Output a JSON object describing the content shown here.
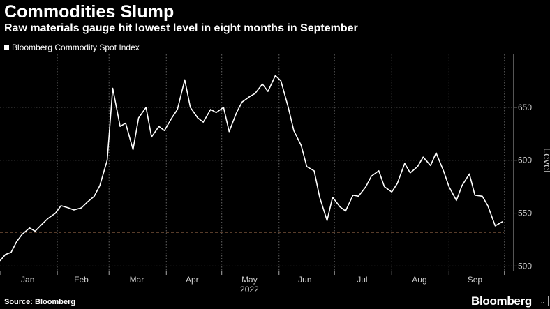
{
  "header": {
    "title": "Commodities Slump",
    "subtitle": "Raw materials gauge hit lowest level in eight months in September"
  },
  "legend": {
    "label": "Bloomberg Commodity Spot Index"
  },
  "footer": {
    "source": "Source: Bloomberg",
    "brand": "Bloomberg",
    "badge": "…"
  },
  "colors": {
    "background": "#000000",
    "line": "#ffffff",
    "reference_line": "#e8a070",
    "grid": "#666666"
  },
  "chart_data": {
    "type": "line",
    "title": "Commodities Slump",
    "subtitle": "Raw materials gauge hit lowest level in eight months in September",
    "xlabel": "",
    "ylabel": "Level",
    "year_label": "2022",
    "month_labels": [
      "Jan",
      "Feb",
      "Mar",
      "Apr",
      "May",
      "Jun",
      "Jul",
      "Aug",
      "Sep"
    ],
    "y_ticks": [
      "500",
      "550",
      "600",
      "650"
    ],
    "ylim": [
      495,
      700
    ],
    "grid": true,
    "legend_position": "top-left",
    "reference_line": {
      "y": 532,
      "style": "dashed"
    },
    "series": [
      {
        "name": "Bloomberg Commodity Spot Index",
        "x": [
          "2022-01-01",
          "2022-01-04",
          "2022-01-07",
          "2022-01-10",
          "2022-01-13",
          "2022-01-17",
          "2022-01-20",
          "2022-01-24",
          "2022-01-27",
          "2022-01-31",
          "2022-02-03",
          "2022-02-07",
          "2022-02-10",
          "2022-02-14",
          "2022-02-17",
          "2022-02-21",
          "2022-02-24",
          "2022-02-28",
          "2022-03-03",
          "2022-03-07",
          "2022-03-10",
          "2022-03-14",
          "2022-03-17",
          "2022-03-21",
          "2022-03-24",
          "2022-03-28",
          "2022-03-31",
          "2022-04-04",
          "2022-04-07",
          "2022-04-11",
          "2022-04-14",
          "2022-04-18",
          "2022-04-21",
          "2022-04-25",
          "2022-04-28",
          "2022-05-02",
          "2022-05-05",
          "2022-05-09",
          "2022-05-12",
          "2022-05-16",
          "2022-05-19",
          "2022-05-23",
          "2022-05-26",
          "2022-05-30",
          "2022-06-02",
          "2022-06-06",
          "2022-06-09",
          "2022-06-13",
          "2022-06-16",
          "2022-06-20",
          "2022-06-23",
          "2022-06-27",
          "2022-06-30",
          "2022-07-04",
          "2022-07-07",
          "2022-07-11",
          "2022-07-14",
          "2022-07-18",
          "2022-07-21",
          "2022-07-25",
          "2022-07-28",
          "2022-08-01",
          "2022-08-04",
          "2022-08-08",
          "2022-08-11",
          "2022-08-15",
          "2022-08-18",
          "2022-08-22",
          "2022-08-25",
          "2022-08-29",
          "2022-09-01",
          "2022-09-05",
          "2022-09-08",
          "2022-09-12",
          "2022-09-15",
          "2022-09-19",
          "2022-09-22",
          "2022-09-26",
          "2022-09-30"
        ],
        "values": [
          505,
          511,
          513,
          523,
          530,
          536,
          533,
          540,
          545,
          550,
          557,
          555,
          553,
          555,
          560,
          566,
          576,
          600,
          668,
          632,
          635,
          610,
          640,
          650,
          622,
          632,
          628,
          640,
          648,
          676,
          650,
          640,
          636,
          648,
          645,
          650,
          627,
          645,
          655,
          660,
          663,
          672,
          665,
          680,
          675,
          650,
          628,
          614,
          594,
          590,
          565,
          543,
          565,
          556,
          552,
          567,
          566,
          575,
          585,
          590,
          575,
          570,
          578,
          597,
          588,
          594,
          603,
          595,
          607,
          590,
          575,
          562,
          576,
          587,
          567,
          566,
          557,
          538,
          542
        ]
      }
    ]
  }
}
